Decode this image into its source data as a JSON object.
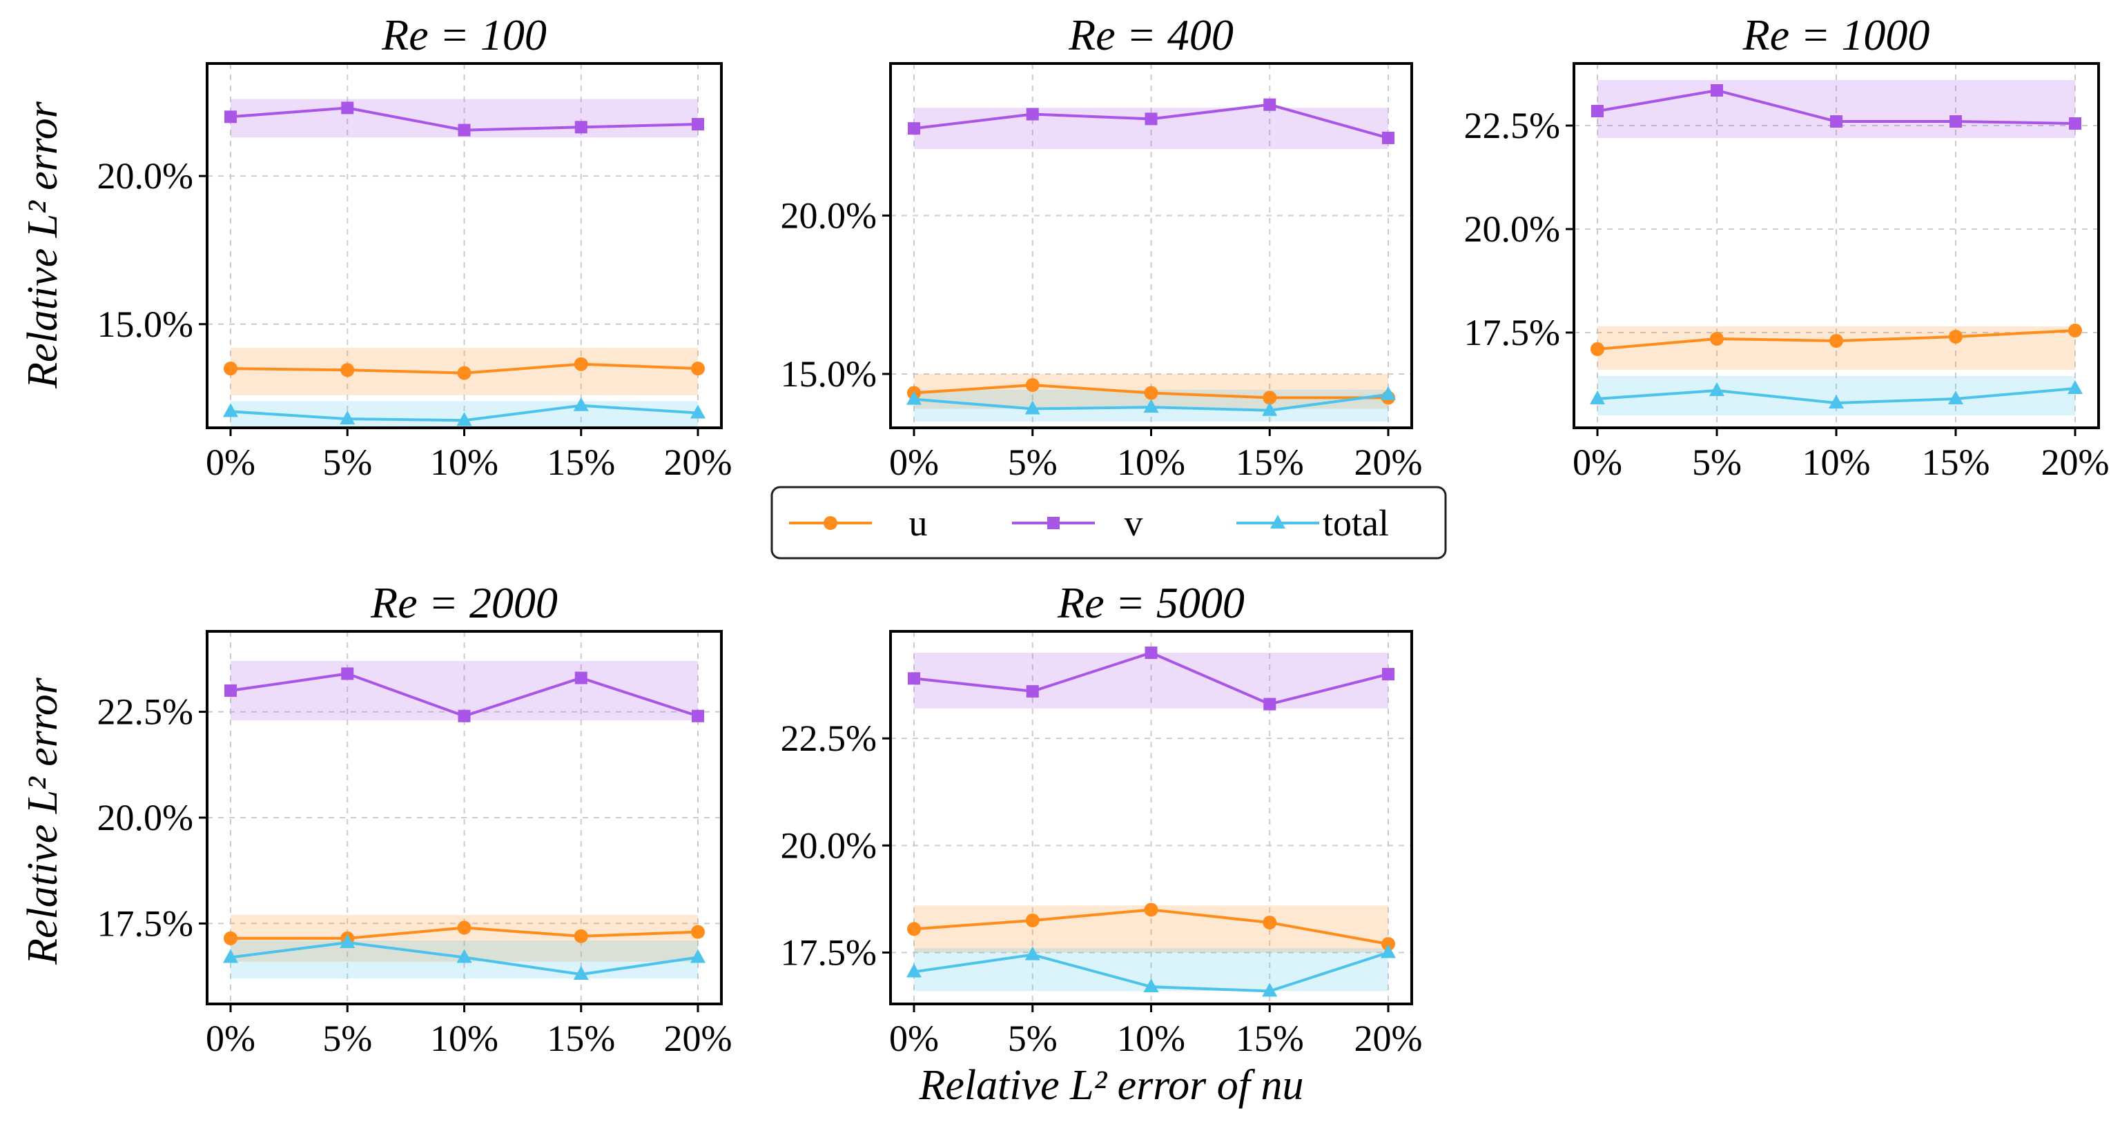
{
  "figure": {
    "ylabel": "Relative L² error",
    "xlabel": "Relative L² error of nu"
  },
  "legend": [
    {
      "key": "u",
      "label": "u",
      "color": "#ff8c1a",
      "marker": "circle"
    },
    {
      "key": "v",
      "label": "v",
      "color": "#a855e8",
      "marker": "square"
    },
    {
      "key": "total",
      "label": "total",
      "color": "#4cc3ec",
      "marker": "triangle"
    }
  ],
  "chart_data": [
    {
      "type": "line",
      "title": "Re = 100",
      "categories": [
        "0%",
        "5%",
        "10%",
        "15%",
        "20%"
      ],
      "ylim": [
        11.5,
        23.8
      ],
      "yticks": [
        15.0,
        20.0
      ],
      "series": [
        {
          "name": "u",
          "values": [
            13.5,
            13.45,
            13.35,
            13.65,
            13.5
          ],
          "band": [
            12.6,
            14.2
          ]
        },
        {
          "name": "v",
          "values": [
            22.0,
            22.3,
            21.55,
            21.65,
            21.75
          ],
          "band": [
            21.3,
            22.6
          ]
        },
        {
          "name": "total",
          "values": [
            12.05,
            11.8,
            11.75,
            12.25,
            12.0
          ],
          "band": [
            11.5,
            12.4
          ]
        }
      ]
    },
    {
      "type": "line",
      "title": "Re = 400",
      "categories": [
        "0%",
        "5%",
        "10%",
        "15%",
        "20%"
      ],
      "ylim": [
        13.3,
        24.8
      ],
      "yticks": [
        15.0,
        20.0
      ],
      "series": [
        {
          "name": "u",
          "values": [
            14.4,
            14.65,
            14.4,
            14.25,
            14.25
          ],
          "band": [
            13.9,
            15.0
          ]
        },
        {
          "name": "v",
          "values": [
            22.75,
            23.2,
            23.05,
            23.5,
            22.45
          ],
          "band": [
            22.1,
            23.4
          ]
        },
        {
          "name": "total",
          "values": [
            14.2,
            13.9,
            13.95,
            13.85,
            14.35
          ],
          "band": [
            13.5,
            14.5
          ]
        }
      ]
    },
    {
      "type": "line",
      "title": "Re = 1000",
      "categories": [
        "0%",
        "5%",
        "10%",
        "15%",
        "20%"
      ],
      "ylim": [
        15.2,
        24.0
      ],
      "yticks": [
        17.5,
        20.0,
        22.5
      ],
      "series": [
        {
          "name": "u",
          "values": [
            17.1,
            17.35,
            17.3,
            17.4,
            17.55
          ],
          "band": [
            16.6,
            17.65
          ]
        },
        {
          "name": "v",
          "values": [
            22.85,
            23.35,
            22.6,
            22.6,
            22.55
          ],
          "band": [
            22.2,
            23.6
          ]
        },
        {
          "name": "total",
          "values": [
            15.9,
            16.1,
            15.8,
            15.9,
            16.15
          ],
          "band": [
            15.5,
            16.45
          ]
        }
      ]
    },
    {
      "type": "line",
      "title": "Re = 2000",
      "categories": [
        "0%",
        "5%",
        "10%",
        "15%",
        "20%"
      ],
      "ylim": [
        15.6,
        24.4
      ],
      "yticks": [
        17.5,
        20.0,
        22.5
      ],
      "series": [
        {
          "name": "u",
          "values": [
            17.15,
            17.15,
            17.4,
            17.2,
            17.3
          ],
          "band": [
            16.6,
            17.7
          ]
        },
        {
          "name": "v",
          "values": [
            23.0,
            23.4,
            22.4,
            23.3,
            22.4
          ],
          "band": [
            22.3,
            23.7
          ]
        },
        {
          "name": "total",
          "values": [
            16.7,
            17.05,
            16.7,
            16.3,
            16.7
          ],
          "band": [
            16.2,
            17.1
          ]
        }
      ]
    },
    {
      "type": "line",
      "title": "Re = 5000",
      "categories": [
        "0%",
        "5%",
        "10%",
        "15%",
        "20%"
      ],
      "ylim": [
        16.3,
        25.0
      ],
      "yticks": [
        17.5,
        20.0,
        22.5
      ],
      "series": [
        {
          "name": "u",
          "values": [
            18.05,
            18.25,
            18.5,
            18.2,
            17.7
          ],
          "band": [
            17.5,
            18.6
          ]
        },
        {
          "name": "v",
          "values": [
            23.9,
            23.6,
            24.5,
            23.3,
            24.0
          ],
          "band": [
            23.2,
            24.5
          ]
        },
        {
          "name": "total",
          "values": [
            17.05,
            17.45,
            16.7,
            16.6,
            17.5
          ],
          "band": [
            16.6,
            17.6
          ]
        }
      ]
    }
  ]
}
